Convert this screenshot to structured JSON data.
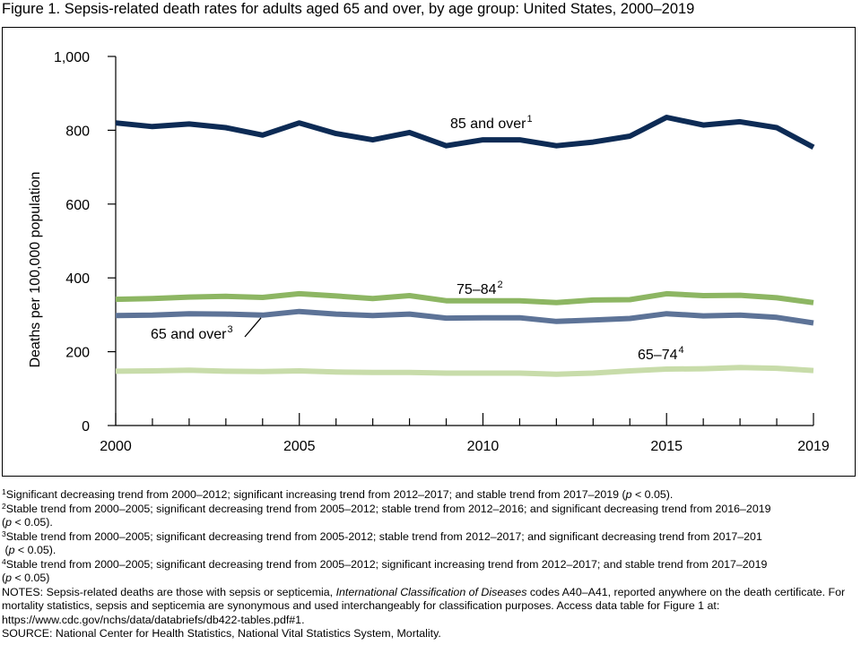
{
  "title": "Figure 1. Sepsis-related death rates for adults aged 65 and over, by age group: United States, 2000–2019",
  "chart_data": {
    "type": "line",
    "ylabel": "Deaths per 100,000 population",
    "xlabel": "",
    "xlim": [
      2000,
      2019
    ],
    "ylim": [
      0,
      1000
    ],
    "x_ticks": [
      2000,
      2005,
      2010,
      2015,
      2019
    ],
    "x_tick_labels": [
      "2000",
      "2005",
      "2010",
      "2015",
      "2019"
    ],
    "y_ticks": [
      0,
      200,
      400,
      600,
      800,
      1000
    ],
    "y_tick_labels": [
      "0",
      "200",
      "400",
      "600",
      "800",
      "1,000"
    ],
    "grid": false,
    "x": [
      2000,
      2001,
      2002,
      2003,
      2004,
      2005,
      2006,
      2007,
      2008,
      2009,
      2010,
      2011,
      2012,
      2013,
      2014,
      2015,
      2016,
      2017,
      2018,
      2019
    ],
    "series": [
      {
        "name": "85 and over",
        "sup": "1",
        "color": "#0d2b55",
        "values": [
          820,
          810,
          817,
          807,
          787,
          820,
          791,
          774,
          794,
          758,
          774,
          774,
          758,
          768,
          784,
          835,
          814,
          823,
          807,
          754
        ]
      },
      {
        "name": "75–84",
        "sup": "2",
        "color": "#8db663",
        "values": [
          342,
          344,
          348,
          350,
          347,
          357,
          351,
          344,
          352,
          338,
          338,
          338,
          333,
          340,
          341,
          357,
          352,
          353,
          346,
          333
        ]
      },
      {
        "name": "65 and over",
        "sup": "3",
        "color": "#5d7397",
        "values": [
          298,
          299,
          303,
          302,
          299,
          309,
          302,
          298,
          302,
          291,
          292,
          292,
          282,
          286,
          290,
          303,
          297,
          299,
          293,
          278
        ]
      },
      {
        "name": "65–74",
        "sup": "4",
        "color": "#c8dcaa",
        "values": [
          147,
          148,
          150,
          147,
          146,
          148,
          145,
          144,
          144,
          142,
          142,
          142,
          139,
          142,
          148,
          153,
          154,
          157,
          155,
          149
        ]
      }
    ]
  },
  "footnotes": [
    {
      "sup": "1",
      "text": "Significant decreasing trend from 2000–2012; significant increasing trend from 2012–2017; and stable trend from 2017–2019 (",
      "p": "p",
      "tail": " < 0.05)."
    },
    {
      "sup": "2",
      "text": "Stable trend from 2000–2005; significant decreasing trend from 2005–2012; stable trend from 2012–2016; and significant decreasing trend from 2016–2019",
      "cont_pre": "(",
      "p": "p",
      "tail": " < 0.05)."
    },
    {
      "sup": "3",
      "text": "Stable trend from 2000–2005; significant decreasing trend from 2005-2012; stable trend from 2012–2017; and significant decreasing trend from 2017–201",
      "cont_pre": " (",
      "p": "p",
      "tail": " < 0.05)."
    },
    {
      "sup": "4",
      "text": "Stable trend from 2000–2005; significant decreasing trend from 2005–2012; significant increasing trend from 2012–2017; and stable trend from 2017–2019",
      "cont_pre": "(",
      "p": "p",
      "tail": " < 0.05)"
    }
  ],
  "notes": {
    "lead": "NOTES: Sepsis-related deaths are those with sepsis or septicemia, ",
    "icd": "International Classification of Diseases",
    "rest": " codes A40–A41, reported anywhere on the death certificate. For mortality statistics, sepsis and septicemia are synonymous and used interchangeably for classification purposes. Access data table for Figure 1 at: https://www.cdc.gov/nchs/data/databriefs/db422-tables.pdf#1."
  },
  "source": "SOURCE: National Center for Health Statistics, National Vital Statistics System, Mortality."
}
